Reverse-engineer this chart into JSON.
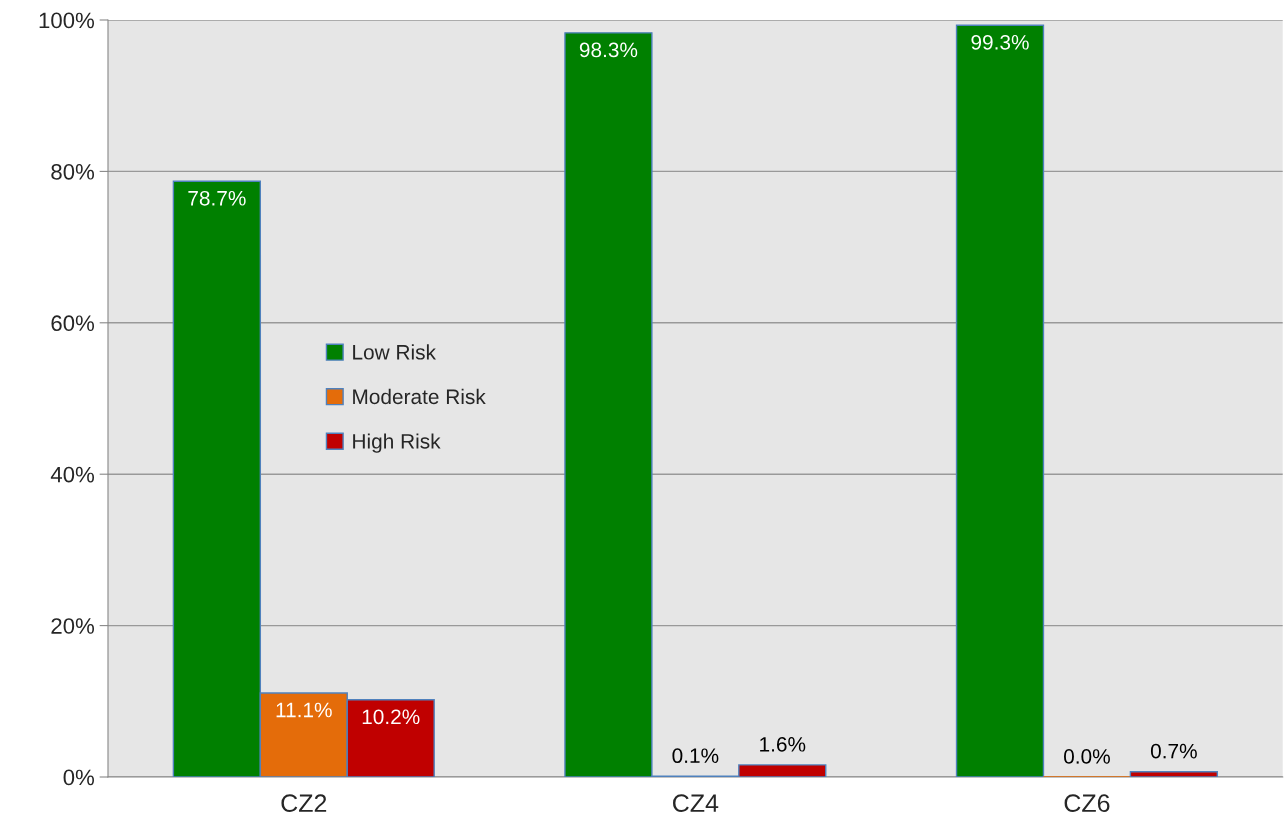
{
  "chart_data": {
    "type": "bar",
    "categories": [
      "CZ2",
      "CZ4",
      "CZ6"
    ],
    "series": [
      {
        "name": "Low Risk",
        "color": "#008000",
        "values": [
          78.7,
          98.3,
          99.3
        ],
        "value_labels": [
          "78.7%",
          "98.3%",
          "99.3%"
        ]
      },
      {
        "name": "Moderate Risk",
        "color": "#e46c0a",
        "values": [
          11.1,
          0.1,
          0.0
        ],
        "value_labels": [
          "11.1%",
          "0.1%",
          "0.0%"
        ]
      },
      {
        "name": "High Risk",
        "color": "#c00000",
        "values": [
          10.2,
          1.6,
          0.7
        ],
        "value_labels": [
          "10.2%",
          "1.6%",
          "0.7%"
        ]
      }
    ],
    "ylim": [
      0,
      100
    ],
    "yticks": [
      {
        "value": 0,
        "label": "0%"
      },
      {
        "value": 20,
        "label": "20%"
      },
      {
        "value": 40,
        "label": "40%"
      },
      {
        "value": 60,
        "label": "60%"
      },
      {
        "value": 80,
        "label": "80%"
      },
      {
        "value": 100,
        "label": "100%"
      }
    ],
    "grid": "y",
    "legend": "left"
  }
}
